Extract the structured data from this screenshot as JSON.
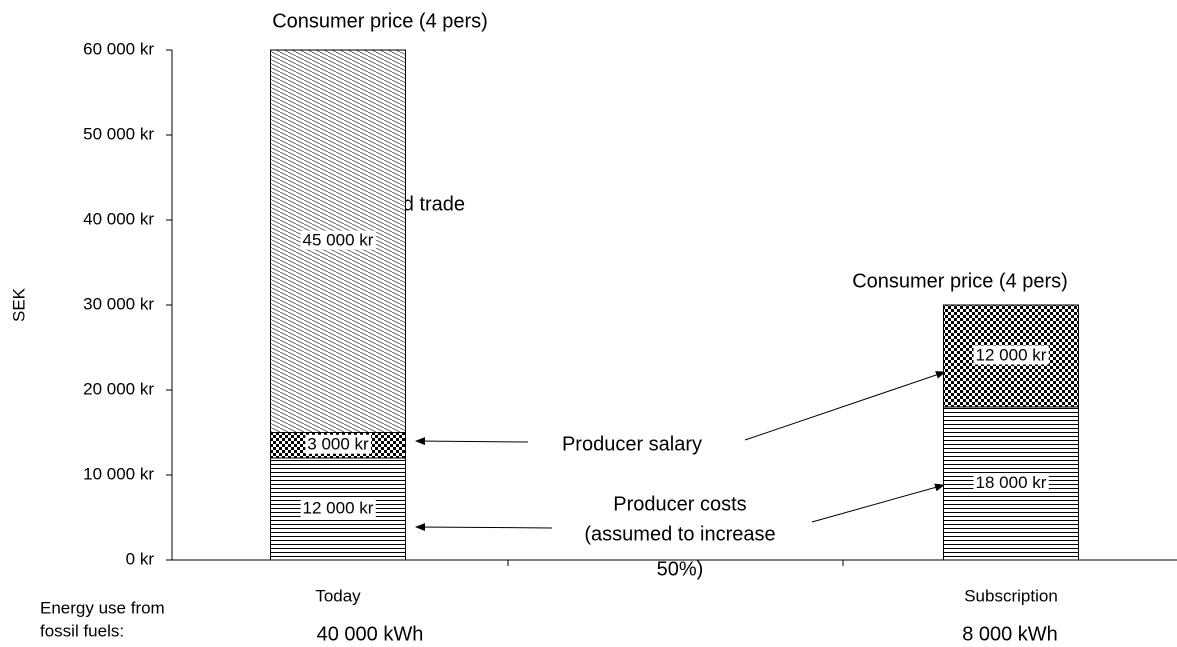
{
  "chart_data": {
    "type": "bar",
    "stacked": true,
    "categories": [
      "Today",
      "Subscription"
    ],
    "y_label": "SEK",
    "ylim": [
      0,
      60000
    ],
    "yticks": [
      {
        "value": 0,
        "label": "0 kr"
      },
      {
        "value": 10000,
        "label": "10 000 kr"
      },
      {
        "value": 20000,
        "label": "20 000 kr"
      },
      {
        "value": 30000,
        "label": "30 000 kr"
      },
      {
        "value": 40000,
        "label": "40 000 kr"
      },
      {
        "value": 50000,
        "label": "50 000 kr"
      },
      {
        "value": 60000,
        "label": "60 000 kr"
      }
    ],
    "series": [
      {
        "name": "Producer costs",
        "color": "#000000",
        "pattern": "hlines",
        "values": [
          12000,
          18000
        ],
        "value_labels": [
          "12 000 kr",
          "18 000 kr"
        ]
      },
      {
        "name": "Producer salary",
        "color": "#000000",
        "pattern": "checker",
        "values": [
          3000,
          12000
        ],
        "value_labels": [
          "3 000 kr",
          "12 000 kr"
        ]
      },
      {
        "name": "Distribution and trade",
        "color": "#000000",
        "pattern": "diag",
        "values": [
          45000,
          null
        ],
        "value_labels": [
          "45 000 kr",
          null
        ]
      }
    ],
    "annotations": {
      "consumer_price": [
        "Consumer price (4 pers)",
        "Consumer price  (4 pers)"
      ],
      "producer_costs_note": [
        "(assumed to increase",
        "50%)"
      ]
    },
    "energy_use": {
      "label": [
        "Energy use from",
        "fossil fuels:"
      ],
      "values": [
        "40 000 kWh",
        "8 000 kWh"
      ]
    }
  }
}
